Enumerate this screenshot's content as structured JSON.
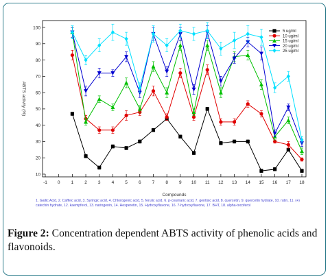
{
  "chart_data": {
    "type": "line",
    "xlabel": "Compounds",
    "ylabel": "ABTS activity (%)",
    "xlim": [
      -1,
      18
    ],
    "ylim": [
      10,
      100
    ],
    "x_ticks": [
      "-1",
      "0",
      "1",
      "2",
      "3",
      "4",
      "5",
      "6",
      "7",
      "8",
      "9",
      "10",
      "11",
      "12",
      "13",
      "14",
      "15",
      "16",
      "17",
      "18"
    ],
    "y_ticks": [
      "10",
      "20",
      "30",
      "40",
      "50",
      "60",
      "70",
      "80",
      "90",
      "100"
    ],
    "x": [
      1,
      2,
      3,
      4,
      5,
      6,
      7,
      8,
      9,
      10,
      11,
      12,
      13,
      14,
      15,
      16,
      17,
      18
    ],
    "legend_position": "top-right",
    "series": [
      {
        "name": "5 ug/ml",
        "color": "#000000",
        "marker": "square",
        "values": [
          47,
          21,
          14,
          27,
          26,
          30,
          37,
          44,
          33,
          23,
          50,
          29,
          30,
          30,
          12,
          13,
          25,
          12
        ],
        "errors": [
          1,
          1,
          1,
          1,
          1,
          1,
          1,
          1,
          1,
          1,
          1,
          1,
          1,
          1,
          1,
          1,
          1,
          1
        ]
      },
      {
        "name": "10 ug/ml",
        "color": "#e00000",
        "marker": "circle",
        "values": [
          83,
          44,
          37,
          37,
          46,
          48,
          61,
          45,
          72,
          45,
          74,
          42,
          42,
          53,
          47,
          30,
          28,
          19
        ],
        "errors": [
          3,
          2,
          2,
          2,
          3,
          2,
          3,
          2,
          3,
          2,
          3,
          2,
          2,
          2,
          2,
          1,
          2,
          1
        ]
      },
      {
        "name": "15 ug/ml",
        "color": "#00c000",
        "marker": "triangle-up",
        "values": [
          97,
          42,
          56,
          51,
          66,
          50,
          76,
          60,
          89,
          48,
          89,
          60,
          82,
          83,
          65,
          33,
          43,
          24
        ],
        "errors": [
          3,
          2,
          2,
          2,
          3,
          2,
          3,
          3,
          3,
          2,
          3,
          3,
          3,
          3,
          3,
          2,
          2,
          2
        ]
      },
      {
        "name": "20 ug/ml",
        "color": "#0000d0",
        "marker": "triangle-down",
        "values": [
          97,
          61,
          72,
          72,
          82,
          60,
          96,
          73,
          96,
          62,
          97,
          67,
          81,
          91,
          84,
          35,
          51,
          29
        ],
        "errors": [
          3,
          3,
          3,
          2,
          3,
          3,
          4,
          3,
          4,
          3,
          4,
          3,
          3,
          3,
          4,
          2,
          2,
          2
        ]
      },
      {
        "name": "25 ug/ml",
        "color": "#00e0ff",
        "marker": "diamond",
        "values": [
          97,
          80,
          89,
          97,
          93,
          63,
          96,
          89,
          98,
          96,
          98,
          87,
          92,
          96,
          94,
          63,
          70,
          31
        ],
        "errors": [
          4,
          3,
          4,
          5,
          4,
          3,
          5,
          4,
          4,
          4,
          5,
          4,
          5,
          5,
          5,
          3,
          3,
          2
        ]
      }
    ]
  },
  "footnote": "1. Gallic Acid, 2. Caffeic acid, 3. Syringic acid, 4. Chlorogenic acid, 5. ferulic acid, 6. p-coumaric acid, 7. gentisic acid, 8. quercetin, 9. quercetin hydrate, 10. rutin, 11. (+) catechin hydrate, 12. kaempferol, 13. naringenin, 14. Hesperetin, 15. Hydroxyflavone, 16. 7-hydroxyflavone, 17. BHT, 18. alpha-tocoferol",
  "caption": {
    "label": "Figure 2:",
    "text": " Concentration dependent ABTS activity of phenolic acids and flavonoids."
  }
}
